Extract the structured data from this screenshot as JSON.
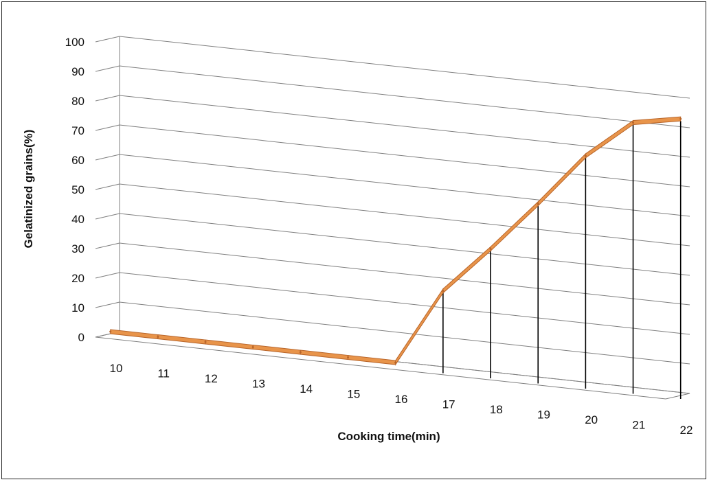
{
  "chart_data": {
    "type": "line",
    "title": "",
    "xlabel": "Cooking time(min)",
    "ylabel": "Gelatinized grains(%)",
    "ylim": [
      0,
      100
    ],
    "yticks": [
      0,
      10,
      20,
      30,
      40,
      50,
      60,
      70,
      80,
      90,
      100
    ],
    "x": [
      10,
      11,
      12,
      13,
      14,
      15,
      16,
      17,
      18,
      19,
      20,
      21,
      22
    ],
    "series": [
      {
        "name": "",
        "values": [
          0,
          0,
          0,
          0,
          0,
          0,
          0,
          26,
          42,
          59,
          77,
          90,
          93
        ]
      }
    ],
    "grid": true,
    "legend": "none",
    "style": "3d-line",
    "colors": {
      "line": "#e8944a",
      "line_dark": "#b8652a",
      "drop": "#000000",
      "grid": "#7f7f7f"
    }
  }
}
